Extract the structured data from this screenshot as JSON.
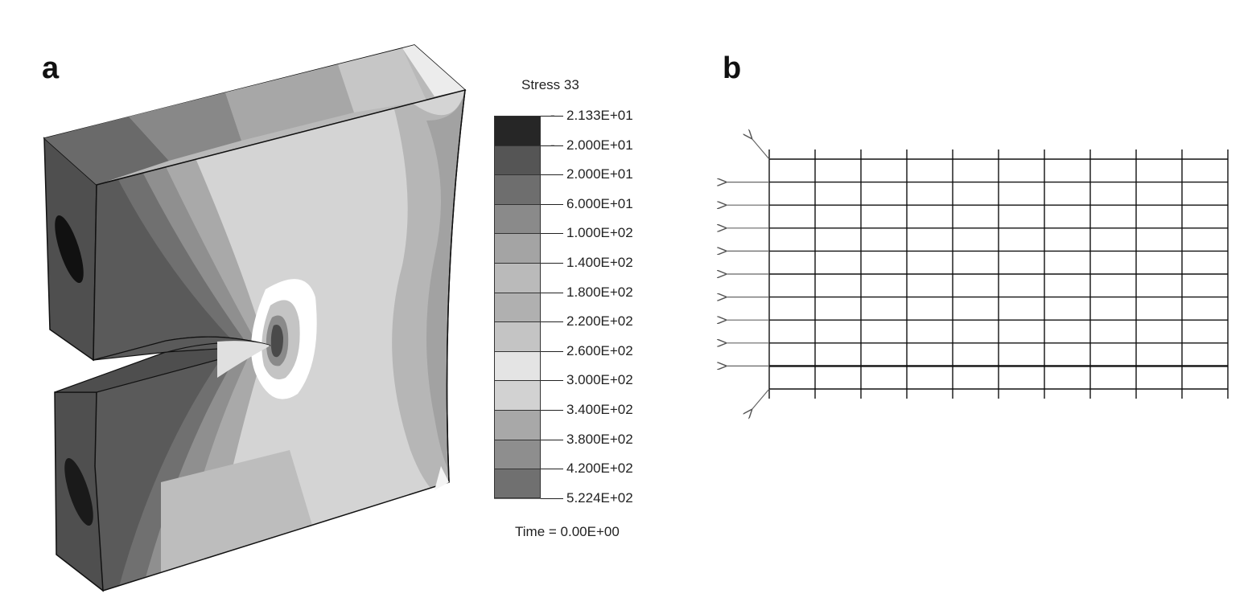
{
  "panels": {
    "a_label": "a",
    "b_label": "b"
  },
  "legend": {
    "title": "Stress 33",
    "entries": [
      {
        "value": "2.133E+01",
        "dash": "-",
        "color": "#262626"
      },
      {
        "value": "2.000E+01",
        "dash": "-",
        "color": "#555555"
      },
      {
        "value": "2.000E+01",
        "dash": "",
        "color": "#6e6e6e"
      },
      {
        "value": "6.000E+01",
        "dash": "",
        "color": "#8a8a8a"
      },
      {
        "value": "1.000E+02",
        "dash": "",
        "color": "#a4a4a4"
      },
      {
        "value": "1.400E+02",
        "dash": "",
        "color": "#bababa"
      },
      {
        "value": "1.800E+02",
        "dash": "",
        "color": "#b0b0b0"
      },
      {
        "value": "2.200E+02",
        "dash": "",
        "color": "#c4c4c4"
      },
      {
        "value": "2.600E+02",
        "dash": "",
        "color": "#e4e4e4"
      },
      {
        "value": "3.000E+02",
        "dash": "",
        "color": "#d2d2d2"
      },
      {
        "value": "3.400E+02",
        "dash": "",
        "color": "#a8a8a8"
      },
      {
        "value": "3.800E+02",
        "dash": "",
        "color": "#8e8e8e"
      },
      {
        "value": "4.200E+02",
        "dash": "",
        "color": "#707070"
      },
      {
        "value": "5.224E+02",
        "dash": "",
        "color": ""
      }
    ],
    "time_text": "Time = 0.00E+00"
  },
  "mesh": {
    "columns": 10,
    "rows": 10
  }
}
